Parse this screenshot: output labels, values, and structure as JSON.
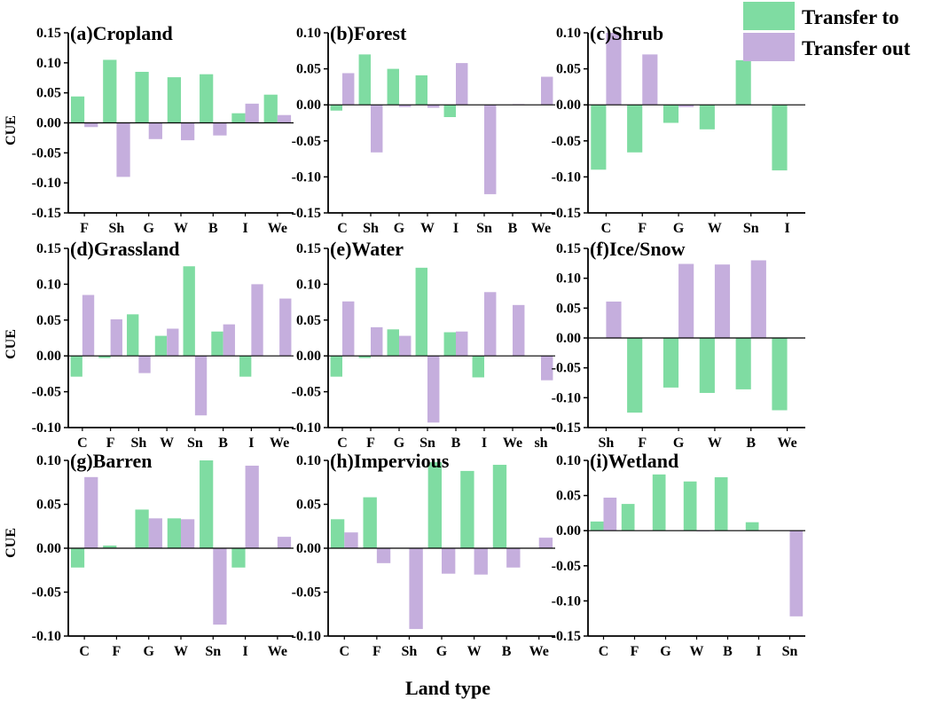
{
  "chart_data": {
    "type": "bar",
    "xlabel": "Land type",
    "ylabel": "CUE",
    "legend": {
      "placement": "top-right",
      "entries": [
        {
          "name": "Transfer to",
          "color": "#7fdca2"
        },
        {
          "name": "Transfer out",
          "color": "#c5aedd"
        }
      ]
    },
    "panels": [
      {
        "title": "(a)Cropland",
        "ylim": [
          -0.15,
          0.15
        ],
        "yticks": [
          -0.15,
          -0.1,
          -0.05,
          0.0,
          0.05,
          0.1,
          0.15
        ],
        "categories": [
          "F",
          "Sh",
          "G",
          "W",
          "B",
          "I",
          "We"
        ],
        "series": [
          {
            "name": "Transfer to",
            "values": [
              0.044,
              0.105,
              0.085,
              0.076,
              0.081,
              0.016,
              0.047
            ]
          },
          {
            "name": "Transfer out",
            "values": [
              -0.007,
              -0.09,
              -0.027,
              -0.029,
              -0.021,
              0.032,
              0.013
            ]
          }
        ]
      },
      {
        "title": "(b)Forest",
        "ylim": [
          -0.15,
          0.1
        ],
        "yticks": [
          -0.15,
          -0.1,
          -0.05,
          0.0,
          0.05,
          0.1
        ],
        "categories": [
          "C",
          "Sh",
          "G",
          "W",
          "I",
          "Sn",
          "B",
          "We"
        ],
        "series": [
          {
            "name": "Transfer to",
            "values": [
              -0.008,
              0.07,
              0.05,
              0.041,
              -0.017,
              0.0,
              0.0,
              0.0
            ]
          },
          {
            "name": "Transfer out",
            "values": [
              0.044,
              -0.066,
              -0.003,
              -0.004,
              0.058,
              -0.124,
              0.001,
              0.039
            ]
          }
        ]
      },
      {
        "title": "(c)Shrub",
        "ylim": [
          -0.15,
          0.1
        ],
        "yticks": [
          -0.15,
          -0.1,
          -0.05,
          0.0,
          0.05,
          0.1
        ],
        "categories": [
          "C",
          "F",
          "G",
          "W",
          "Sn",
          "I"
        ],
        "series": [
          {
            "name": "Transfer to",
            "values": [
              -0.09,
              -0.066,
              -0.025,
              -0.034,
              0.062,
              -0.091
            ]
          },
          {
            "name": "Transfer out",
            "values": [
              0.1,
              0.07,
              -0.003,
              0.0,
              0.0,
              0.0
            ]
          }
        ]
      },
      {
        "title": "(d)Grassland",
        "ylim": [
          -0.1,
          0.15
        ],
        "yticks": [
          -0.1,
          -0.05,
          0.0,
          0.05,
          0.1,
          0.15
        ],
        "categories": [
          "C",
          "F",
          "Sh",
          "W",
          "Sn",
          "B",
          "I",
          "We"
        ],
        "series": [
          {
            "name": "Transfer to",
            "values": [
              -0.029,
              -0.003,
              0.058,
              0.028,
              0.125,
              0.034,
              -0.029,
              0.0
            ]
          },
          {
            "name": "Transfer out",
            "values": [
              0.085,
              0.051,
              -0.024,
              0.038,
              -0.083,
              0.044,
              0.1,
              0.08
            ]
          }
        ]
      },
      {
        "title": "(e)Water",
        "ylim": [
          -0.1,
          0.15
        ],
        "yticks": [
          -0.1,
          -0.05,
          0.0,
          0.05,
          0.1,
          0.15
        ],
        "categories": [
          "C",
          "F",
          "G",
          "Sn",
          "B",
          "I",
          "We",
          "sh"
        ],
        "series": [
          {
            "name": "Transfer to",
            "values": [
              -0.029,
              -0.003,
              0.037,
              0.123,
              0.033,
              -0.03,
              0.0,
              0.0
            ]
          },
          {
            "name": "Transfer out",
            "values": [
              0.076,
              0.04,
              0.028,
              -0.093,
              0.034,
              0.089,
              0.071,
              -0.034
            ]
          }
        ]
      },
      {
        "title": "(f)Ice/Snow",
        "ylim": [
          -0.15,
          0.15
        ],
        "yticks": [
          -0.15,
          -0.1,
          -0.05,
          0.0,
          0.05,
          0.1,
          0.15
        ],
        "categories": [
          "Sh",
          "F",
          "G",
          "W",
          "B",
          "We"
        ],
        "series": [
          {
            "name": "Transfer to",
            "values": [
              0.0,
              -0.125,
              -0.083,
              -0.092,
              -0.086,
              -0.121
            ]
          },
          {
            "name": "Transfer out",
            "values": [
              0.061,
              0.0,
              0.124,
              0.123,
              0.13,
              0.0
            ]
          }
        ]
      },
      {
        "title": "(g)Barren",
        "ylim": [
          -0.1,
          0.1
        ],
        "yticks": [
          -0.1,
          -0.05,
          0.0,
          0.05,
          0.1
        ],
        "categories": [
          "C",
          "F",
          "G",
          "W",
          "Sn",
          "I",
          "We"
        ],
        "series": [
          {
            "name": "Transfer to",
            "values": [
              -0.022,
              0.003,
              0.044,
              0.034,
              0.1,
              -0.022,
              0.0
            ]
          },
          {
            "name": "Transfer out",
            "values": [
              0.081,
              0.0,
              0.034,
              0.033,
              -0.087,
              0.094,
              0.013
            ]
          }
        ]
      },
      {
        "title": "(h)Impervious",
        "ylim": [
          -0.1,
          0.1
        ],
        "yticks": [
          -0.1,
          -0.05,
          0.0,
          0.05,
          0.1
        ],
        "categories": [
          "C",
          "F",
          "Sh",
          "G",
          "W",
          "B",
          "We"
        ],
        "series": [
          {
            "name": "Transfer to",
            "values": [
              0.033,
              0.058,
              0.0,
              0.098,
              0.088,
              0.095,
              0.0
            ]
          },
          {
            "name": "Transfer out",
            "values": [
              0.018,
              -0.017,
              -0.092,
              -0.029,
              -0.03,
              -0.022,
              0.012
            ]
          }
        ]
      },
      {
        "title": "(i)Wetland",
        "ylim": [
          -0.15,
          0.1
        ],
        "yticks": [
          -0.15,
          -0.1,
          -0.05,
          0.0,
          0.05,
          0.1
        ],
        "categories": [
          "C",
          "F",
          "G",
          "W",
          "B",
          "I",
          "Sn"
        ],
        "series": [
          {
            "name": "Transfer to",
            "values": [
              0.013,
              0.038,
              0.08,
              0.07,
              0.076,
              0.012,
              0.0
            ]
          },
          {
            "name": "Transfer out",
            "values": [
              0.047,
              0.0,
              0.0,
              -0.001,
              0.0,
              0.0,
              -0.122
            ]
          }
        ]
      }
    ]
  }
}
